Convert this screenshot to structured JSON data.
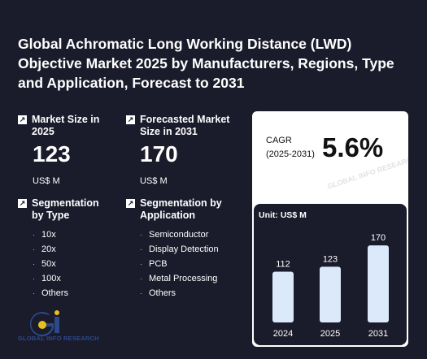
{
  "title": "Global Achromatic Long Working Distance (LWD) Objective Market 2025 by Manufacturers, Regions, Type and Application, Forecast to 2031",
  "market_size": {
    "label": "Market Size in 2025",
    "value": "123",
    "unit": "US$ M"
  },
  "forecast_size": {
    "label": "Forecasted Market Size in 2031",
    "value": "170",
    "unit": "US$ M"
  },
  "segment_type": {
    "label": "Segmentation by Type",
    "items": [
      "10x",
      "20x",
      "50x",
      "100x",
      "Others"
    ]
  },
  "segment_app": {
    "label": "Segmentation by Application",
    "items": [
      "Semiconductor",
      "Display Detection",
      "PCB",
      "Metal Processing",
      "Others"
    ]
  },
  "cagr": {
    "label_line1": "CAGR",
    "label_line2": "(2025-2031)",
    "value": "5.6%"
  },
  "chart_unit": "Unit: US$ M",
  "logo_text": "GLOBAL INFO RESEARCH",
  "watermark_text": "GLOBAL INFO RESEARCH",
  "colors": {
    "background": "#1a1b2b",
    "bar_fill": "#dbe9fb",
    "logo_blue": "#2c4a8a",
    "logo_yellow": "#e8c21a"
  },
  "chart_data": {
    "type": "bar",
    "categories": [
      "2024",
      "2025",
      "2031"
    ],
    "values": [
      112,
      123,
      170
    ],
    "title": "",
    "xlabel": "",
    "ylabel": "",
    "ylim": [
      0,
      190
    ],
    "grid": false
  }
}
